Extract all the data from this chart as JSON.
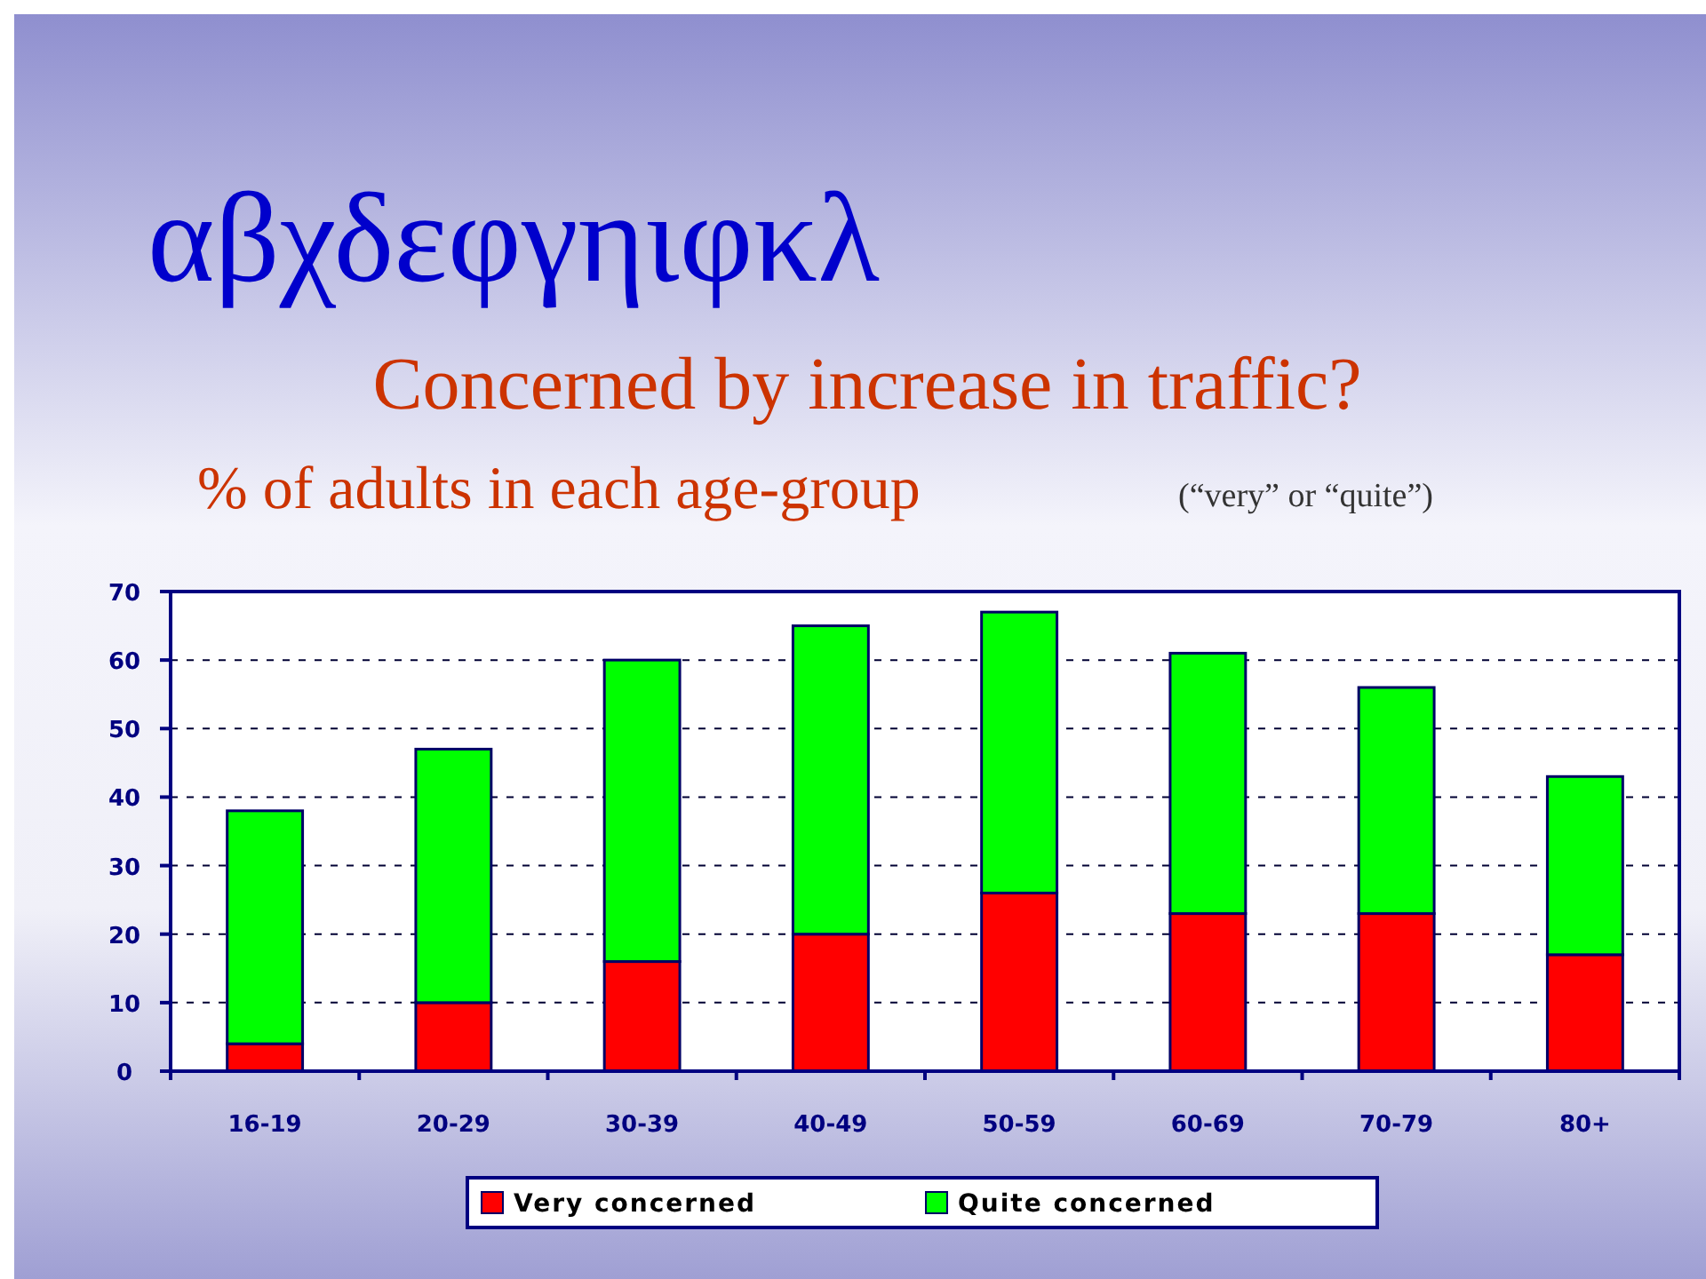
{
  "chart_data": {
    "type": "bar",
    "title": "Concerned by increase in traffic?",
    "subtitle": "% of adults in each age-group",
    "annotations": [
      "αβχδεφγηιφκλ",
      "(“very” or “quite”)"
    ],
    "categories": [
      "16-19",
      "20-29",
      "30-39",
      "40-49",
      "50-59",
      "60-69",
      "70-79",
      "80+"
    ],
    "series": [
      {
        "name": "Very concerned",
        "color": "#ff0000",
        "values": [
          4,
          10,
          16,
          20,
          26,
          23,
          23,
          17
        ]
      },
      {
        "name": "Quite concerned",
        "color": "#00ff00",
        "values": [
          34,
          37,
          44,
          45,
          41,
          38,
          33,
          26
        ]
      }
    ],
    "stacked": true,
    "ylim": [
      0,
      70
    ],
    "yticks": [
      0,
      10,
      20,
      30,
      40,
      50,
      60,
      70
    ],
    "grid": "y",
    "legend": "bottom"
  }
}
